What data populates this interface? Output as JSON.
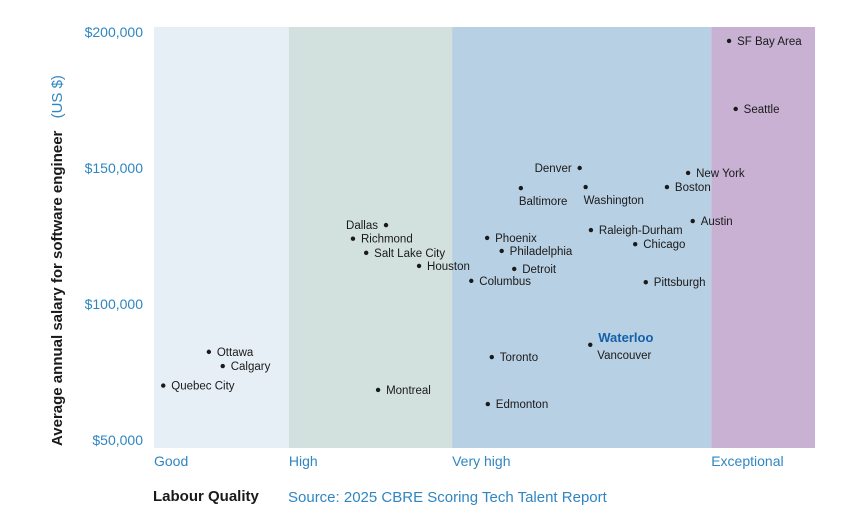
{
  "chart_data": {
    "type": "scatter",
    "title": "",
    "xlabel": "Labour Quality",
    "ylabel": "Average annual salary for software engineer",
    "ylabel_unit": "(US $)",
    "source": "Source: 2025 CBRE Scoring Tech Talent Report",
    "xlim": [
      0,
      100
    ],
    "ylim": [
      46,
      202
    ],
    "y_unit": "thousand USD",
    "y_ticks": [
      {
        "value": 200,
        "label": "$200,000"
      },
      {
        "value": 150,
        "label": "$150,000"
      },
      {
        "value": 100,
        "label": "$100,000"
      },
      {
        "value": 50,
        "label": "$50,000"
      }
    ],
    "bands": [
      {
        "label": "Good",
        "from": 0,
        "to": 20.4,
        "color": "#e6eff6"
      },
      {
        "label": "High",
        "from": 20.4,
        "to": 45.1,
        "color": "#d2e1de"
      },
      {
        "label": "Very high",
        "from": 45.1,
        "to": 84.3,
        "color": "#b8d0e3"
      },
      {
        "label": "Exceptional",
        "from": 84.3,
        "to": 100,
        "color": "#c8b1d3"
      }
    ],
    "grid": false,
    "legend": "none",
    "points": [
      {
        "name": "SF Bay Area",
        "x": 87.0,
        "y": 196.7,
        "label_side": "right"
      },
      {
        "name": "Seattle",
        "x": 88.0,
        "y": 171.7,
        "label_side": "right"
      },
      {
        "name": "New York",
        "x": 80.8,
        "y": 148.2,
        "label_side": "right"
      },
      {
        "name": "Boston",
        "x": 77.6,
        "y": 143.0,
        "label_side": "right"
      },
      {
        "name": "Denver",
        "x": 64.4,
        "y": 150.0,
        "label_side": "left"
      },
      {
        "name": "Baltimore",
        "x": 55.5,
        "y": 142.6,
        "label_side": "below"
      },
      {
        "name": "Washington",
        "x": 65.3,
        "y": 143.0,
        "label_side": "below"
      },
      {
        "name": "Austin",
        "x": 81.5,
        "y": 130.5,
        "label_side": "right"
      },
      {
        "name": "Dallas",
        "x": 35.1,
        "y": 129.0,
        "label_side": "left"
      },
      {
        "name": "Raleigh-Durham",
        "x": 66.1,
        "y": 127.2,
        "label_side": "right"
      },
      {
        "name": "Richmond",
        "x": 30.1,
        "y": 124.0,
        "label_side": "right"
      },
      {
        "name": "Phoenix",
        "x": 50.4,
        "y": 124.3,
        "label_side": "right"
      },
      {
        "name": "Chicago",
        "x": 72.8,
        "y": 122.0,
        "label_side": "right"
      },
      {
        "name": "Philadelphia",
        "x": 52.6,
        "y": 119.5,
        "label_side": "right"
      },
      {
        "name": "Salt Lake City",
        "x": 32.1,
        "y": 118.8,
        "label_side": "right"
      },
      {
        "name": "Houston",
        "x": 40.1,
        "y": 114.0,
        "label_side": "right"
      },
      {
        "name": "Detroit",
        "x": 54.5,
        "y": 112.9,
        "label_side": "right"
      },
      {
        "name": "Columbus",
        "x": 48.0,
        "y": 108.5,
        "label_side": "right"
      },
      {
        "name": "Pittsburgh",
        "x": 74.4,
        "y": 108.0,
        "label_side": "right"
      },
      {
        "name": "Waterloo",
        "x": 66.0,
        "y": 85.0,
        "label_side": "right-above",
        "highlight": true
      },
      {
        "name": "Vancouver",
        "x": 66.0,
        "y": 85.0,
        "label_side": "right-below"
      },
      {
        "name": "Ottawa",
        "x": 8.3,
        "y": 82.4,
        "label_side": "right"
      },
      {
        "name": "Toronto",
        "x": 51.1,
        "y": 80.5,
        "label_side": "right"
      },
      {
        "name": "Calgary",
        "x": 10.4,
        "y": 77.2,
        "label_side": "right"
      },
      {
        "name": "Quebec City",
        "x": 1.4,
        "y": 70.0,
        "label_side": "right"
      },
      {
        "name": "Montreal",
        "x": 33.9,
        "y": 68.4,
        "label_side": "right"
      },
      {
        "name": "Edmonton",
        "x": 50.5,
        "y": 63.2,
        "label_side": "right"
      }
    ],
    "colors": {
      "tick": "#2f86c2",
      "point": "#1a1a1a",
      "highlight": "#1560a8"
    }
  }
}
